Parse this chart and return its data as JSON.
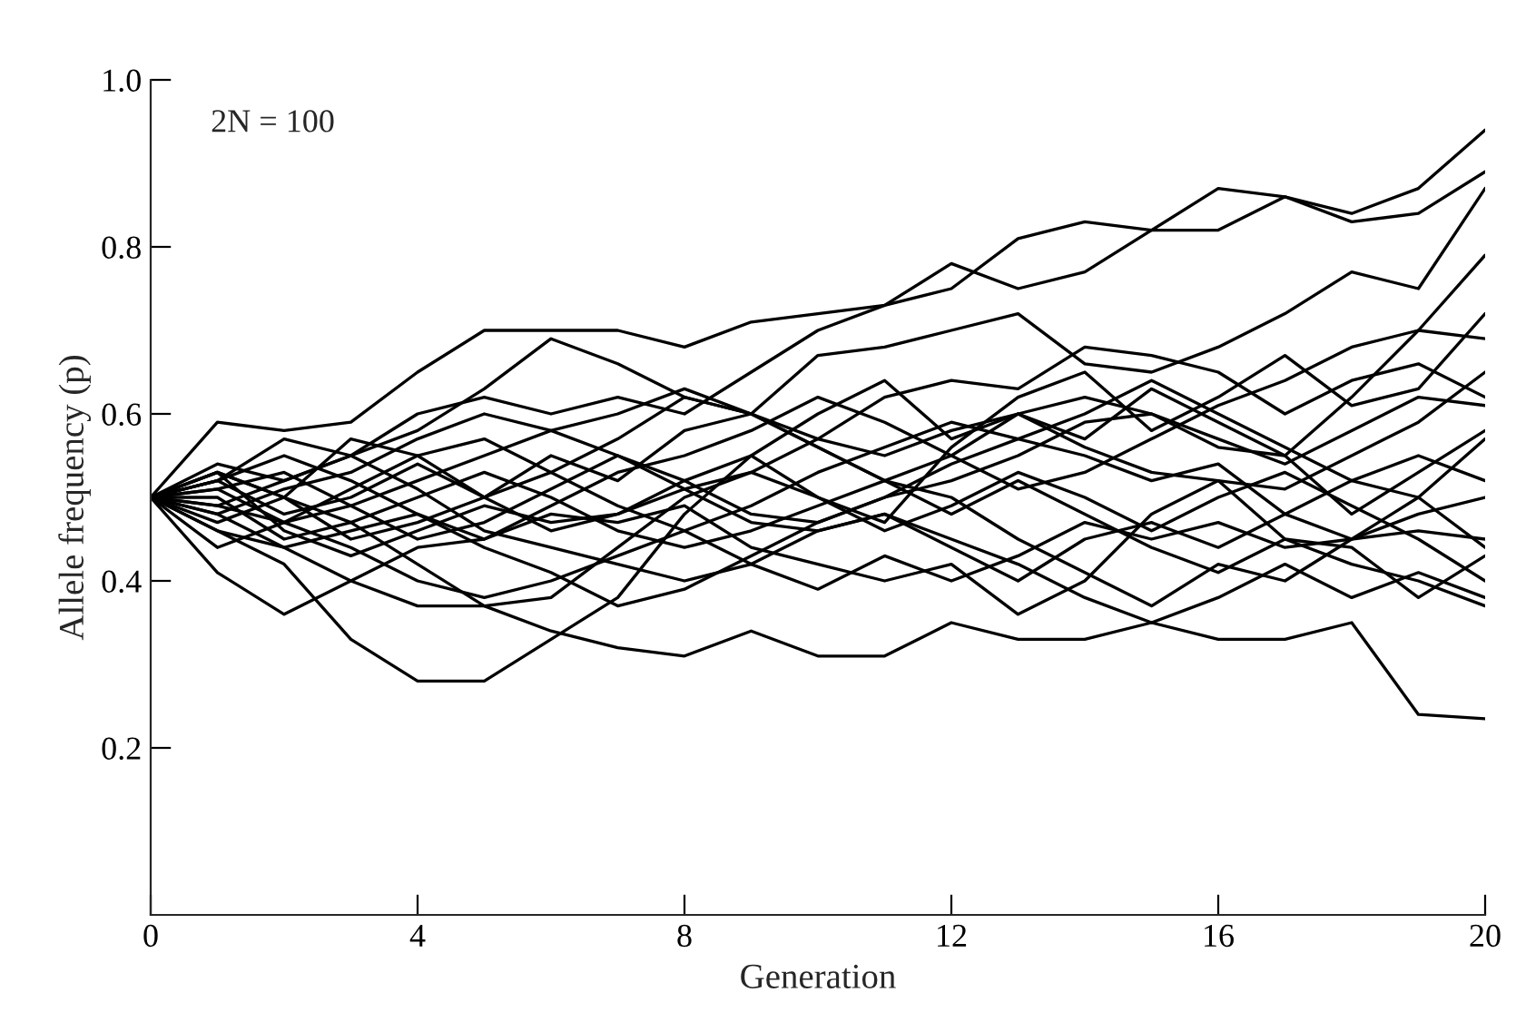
{
  "chart_data": {
    "type": "line",
    "xlabel": "Generation",
    "ylabel": "Allele frequency (p)",
    "annotations": [
      "2N = 100"
    ],
    "xlim": [
      0,
      20
    ],
    "ylim": [
      0,
      1.0
    ],
    "xticks": [
      0,
      4,
      8,
      12,
      16,
      20
    ],
    "yticks": [
      0.2,
      0.4,
      0.6,
      0.8,
      {
        "value": 1,
        "label": "1.0"
      }
    ],
    "grid": false,
    "legend": false,
    "marker": "none",
    "line_style": "solid",
    "x": [
      0,
      1,
      2,
      3,
      4,
      5,
      6,
      7,
      8,
      9,
      10,
      11,
      12,
      13,
      14,
      15,
      16,
      17,
      18,
      19,
      20
    ],
    "series": [
      {
        "color": "#000000",
        "values": [
          0.5,
          0.52,
          0.57,
          0.55,
          0.6,
          0.62,
          0.6,
          0.62,
          0.6,
          0.65,
          0.7,
          0.73,
          0.75,
          0.81,
          0.83,
          0.82,
          0.87,
          0.86,
          0.84,
          0.87,
          0.94
        ]
      },
      {
        "color": "#000000",
        "values": [
          0.5,
          0.59,
          0.58,
          0.59,
          0.65,
          0.7,
          0.7,
          0.7,
          0.68,
          0.71,
          0.72,
          0.73,
          0.78,
          0.75,
          0.77,
          0.82,
          0.82,
          0.86,
          0.83,
          0.84,
          0.89
        ]
      },
      {
        "color": "#000000",
        "values": [
          0.5,
          0.54,
          0.52,
          0.55,
          0.58,
          0.63,
          0.69,
          0.66,
          0.62,
          0.6,
          0.67,
          0.68,
          0.7,
          0.72,
          0.66,
          0.65,
          0.68,
          0.72,
          0.77,
          0.75,
          0.87
        ]
      },
      {
        "color": "#000000",
        "values": [
          0.5,
          0.46,
          0.42,
          0.33,
          0.28,
          0.28,
          0.33,
          0.38,
          0.48,
          0.55,
          0.6,
          0.64,
          0.57,
          0.6,
          0.62,
          0.6,
          0.56,
          0.55,
          0.62,
          0.7,
          0.79
        ]
      },
      {
        "color": "#000000",
        "values": [
          0.5,
          0.48,
          0.44,
          0.4,
          0.37,
          0.37,
          0.34,
          0.32,
          0.31,
          0.34,
          0.31,
          0.31,
          0.35,
          0.33,
          0.33,
          0.35,
          0.33,
          0.33,
          0.35,
          0.24,
          0.235
        ]
      },
      {
        "color": "#000000",
        "values": [
          0.5,
          0.41,
          0.36,
          0.4,
          0.44,
          0.45,
          0.48,
          0.47,
          0.49,
          0.44,
          0.42,
          0.4,
          0.42,
          0.36,
          0.4,
          0.48,
          0.52,
          0.45,
          0.44,
          0.38,
          0.43
        ]
      },
      {
        "color": "#000000",
        "values": [
          0.5,
          0.53,
          0.5,
          0.45,
          0.47,
          0.5,
          0.55,
          0.52,
          0.58,
          0.6,
          0.57,
          0.62,
          0.64,
          0.63,
          0.68,
          0.67,
          0.65,
          0.6,
          0.64,
          0.66,
          0.62
        ]
      },
      {
        "color": "#000000",
        "values": [
          0.5,
          0.52,
          0.48,
          0.5,
          0.54,
          0.5,
          0.46,
          0.48,
          0.52,
          0.55,
          0.5,
          0.47,
          0.56,
          0.62,
          0.65,
          0.58,
          0.62,
          0.67,
          0.61,
          0.63,
          0.72
        ]
      },
      {
        "color": "#000000",
        "values": [
          0.5,
          0.47,
          0.5,
          0.57,
          0.55,
          0.5,
          0.53,
          0.57,
          0.62,
          0.6,
          0.56,
          0.52,
          0.5,
          0.45,
          0.41,
          0.37,
          0.42,
          0.4,
          0.45,
          0.46,
          0.45
        ]
      },
      {
        "color": "#000000",
        "values": [
          0.5,
          0.5,
          0.45,
          0.47,
          0.42,
          0.37,
          0.38,
          0.44,
          0.5,
          0.53,
          0.57,
          0.55,
          0.58,
          0.6,
          0.56,
          0.53,
          0.52,
          0.51,
          0.55,
          0.59,
          0.65
        ]
      },
      {
        "color": "#000000",
        "values": [
          0.5,
          0.51,
          0.53,
          0.49,
          0.45,
          0.47,
          0.51,
          0.55,
          0.52,
          0.48,
          0.47,
          0.5,
          0.54,
          0.57,
          0.55,
          0.52,
          0.54,
          0.48,
          0.45,
          0.48,
          0.5
        ]
      },
      {
        "color": "#000000",
        "values": [
          0.5,
          0.44,
          0.47,
          0.51,
          0.55,
          0.57,
          0.53,
          0.49,
          0.46,
          0.49,
          0.53,
          0.56,
          0.59,
          0.57,
          0.6,
          0.64,
          0.6,
          0.56,
          0.52,
          0.5,
          0.57
        ]
      },
      {
        "color": "#000000",
        "values": [
          0.5,
          0.49,
          0.52,
          0.55,
          0.51,
          0.46,
          0.44,
          0.42,
          0.4,
          0.42,
          0.46,
          0.48,
          0.45,
          0.42,
          0.38,
          0.35,
          0.38,
          0.42,
          0.38,
          0.41,
          0.38
        ]
      },
      {
        "color": "#000000",
        "values": [
          0.5,
          0.52,
          0.55,
          0.52,
          0.48,
          0.44,
          0.41,
          0.37,
          0.39,
          0.43,
          0.47,
          0.5,
          0.52,
          0.55,
          0.59,
          0.6,
          0.57,
          0.54,
          0.58,
          0.62,
          0.61
        ]
      },
      {
        "color": "#000000",
        "values": [
          0.5,
          0.53,
          0.46,
          0.43,
          0.46,
          0.49,
          0.47,
          0.48,
          0.51,
          0.47,
          0.46,
          0.48,
          0.44,
          0.4,
          0.45,
          0.47,
          0.44,
          0.48,
          0.52,
          0.55,
          0.52
        ]
      },
      {
        "color": "#000000",
        "values": [
          0.5,
          0.48,
          0.51,
          0.53,
          0.57,
          0.6,
          0.58,
          0.55,
          0.51,
          0.53,
          0.5,
          0.46,
          0.49,
          0.53,
          0.5,
          0.46,
          0.5,
          0.53,
          0.49,
          0.45,
          0.4
        ]
      },
      {
        "color": "#000000",
        "values": [
          0.5,
          0.49,
          0.47,
          0.49,
          0.52,
          0.55,
          0.58,
          0.6,
          0.63,
          0.6,
          0.56,
          0.52,
          0.48,
          0.52,
          0.48,
          0.44,
          0.41,
          0.45,
          0.42,
          0.4,
          0.37
        ]
      },
      {
        "color": "#000000",
        "values": [
          0.5,
          0.46,
          0.44,
          0.46,
          0.48,
          0.45,
          0.49,
          0.53,
          0.55,
          0.58,
          0.62,
          0.59,
          0.55,
          0.6,
          0.57,
          0.63,
          0.59,
          0.55,
          0.48,
          0.53,
          0.58
        ]
      },
      {
        "color": "#000000",
        "values": [
          0.5,
          0.51,
          0.47,
          0.44,
          0.4,
          0.38,
          0.4,
          0.43,
          0.46,
          0.42,
          0.39,
          0.43,
          0.4,
          0.43,
          0.47,
          0.45,
          0.47,
          0.44,
          0.45,
          0.5,
          0.44
        ]
      },
      {
        "color": "#000000",
        "values": [
          0.5,
          0.53,
          0.5,
          0.47,
          0.5,
          0.53,
          0.5,
          0.46,
          0.44,
          0.46,
          0.49,
          0.52,
          0.55,
          0.51,
          0.53,
          0.57,
          0.61,
          0.64,
          0.68,
          0.7,
          0.69
        ]
      }
    ]
  }
}
